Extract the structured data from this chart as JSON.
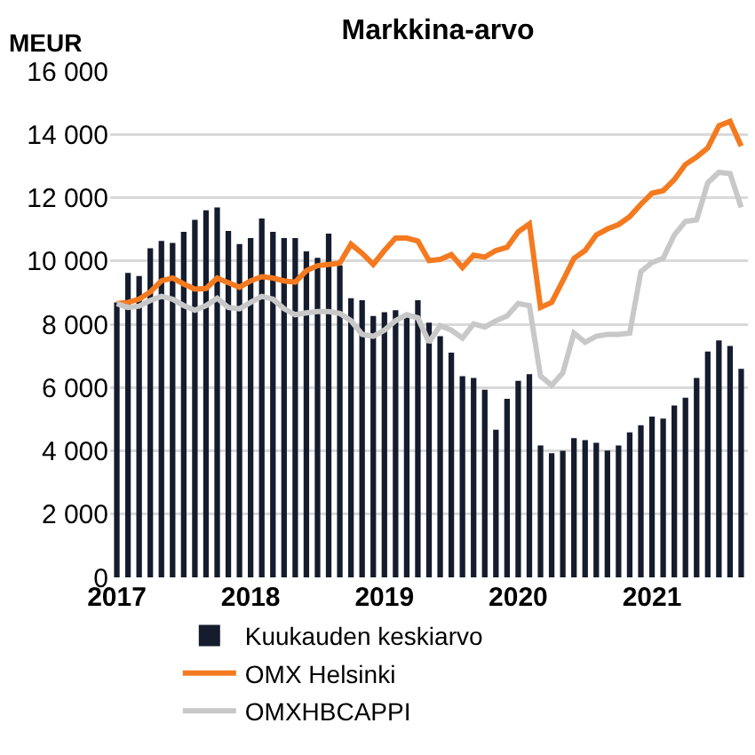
{
  "chart_data": {
    "type": "bar",
    "title": "Markkina-arvo",
    "ylabel": "MEUR",
    "categories": [
      "2017",
      null,
      null,
      null,
      null,
      null,
      null,
      null,
      null,
      null,
      null,
      null,
      "2018",
      null,
      null,
      null,
      null,
      null,
      null,
      null,
      null,
      null,
      null,
      null,
      "2019",
      null,
      null,
      null,
      null,
      null,
      null,
      null,
      null,
      null,
      null,
      null,
      "2020",
      null,
      null,
      null,
      null,
      null,
      null,
      null,
      null,
      null,
      null,
      null,
      "2021",
      null,
      null,
      null,
      null,
      null,
      null,
      null,
      null
    ],
    "series": [
      {
        "name": "Kuukauden keskiarvo",
        "color": "#141c2e",
        "values": [
          8690,
          9620,
          9520,
          10400,
          10630,
          10570,
          10920,
          11300,
          11600,
          11690,
          10950,
          10530,
          10720,
          11340,
          10920,
          10720,
          10720,
          10300,
          10100,
          10860,
          9850,
          8820,
          8760,
          8260,
          8380,
          8440,
          8340,
          8760,
          8050,
          7620,
          7100,
          6360,
          6300,
          5930,
          4670,
          5640,
          6210,
          6420,
          4170,
          3920,
          4000,
          4400,
          4340,
          4250,
          4010,
          4170,
          4580,
          4810,
          5080,
          5020,
          5430,
          5680,
          6300,
          7140,
          7490,
          7310,
          6590
        ]
      },
      {
        "name": "OMX Helsinki",
        "type": "line",
        "color": "#f47a20",
        "values": [
          8650,
          8690,
          8790,
          9020,
          9370,
          9460,
          9270,
          9110,
          9130,
          9460,
          9310,
          9170,
          9370,
          9500,
          9460,
          9370,
          9330,
          9690,
          9850,
          9890,
          9930,
          10530,
          10240,
          9890,
          10330,
          10720,
          10720,
          10630,
          10010,
          10050,
          10200,
          9790,
          10180,
          10120,
          10330,
          10430,
          10920,
          11170,
          8530,
          8690,
          9370,
          10080,
          10330,
          10820,
          11010,
          11150,
          11400,
          11790,
          12140,
          12220,
          12570,
          13050,
          13280,
          13570,
          14270,
          14410,
          13630
        ]
      },
      {
        "name": "OMXHBCAPPI",
        "type": "line",
        "color": "#c8c8c8",
        "values": [
          8650,
          8530,
          8570,
          8750,
          8880,
          8790,
          8590,
          8440,
          8590,
          8820,
          8530,
          8490,
          8690,
          8880,
          8790,
          8490,
          8300,
          8360,
          8400,
          8400,
          8340,
          8110,
          7680,
          7620,
          7810,
          8110,
          8300,
          8200,
          7430,
          7950,
          7810,
          7560,
          8010,
          7910,
          8110,
          8260,
          8650,
          8590,
          6360,
          6070,
          6460,
          7720,
          7430,
          7620,
          7680,
          7680,
          7720,
          9660,
          9950,
          10080,
          10820,
          11250,
          11300,
          12470,
          12800,
          12760,
          11690
        ]
      }
    ],
    "ylim": [
      0,
      16000
    ],
    "yticks": [
      0,
      {
        "value": 2000,
        "label": "2 000"
      },
      {
        "value": 4000,
        "label": "4 000"
      },
      {
        "value": 6000,
        "label": "6 000"
      },
      {
        "value": 8000,
        "label": "8 000"
      },
      {
        "value": 10000,
        "label": "10 000"
      },
      {
        "value": 12000,
        "label": "12 000"
      },
      {
        "value": 14000,
        "label": "14 000"
      },
      {
        "value": 16000,
        "label": "16 000"
      }
    ],
    "grid": "y",
    "legend": "bottom"
  }
}
